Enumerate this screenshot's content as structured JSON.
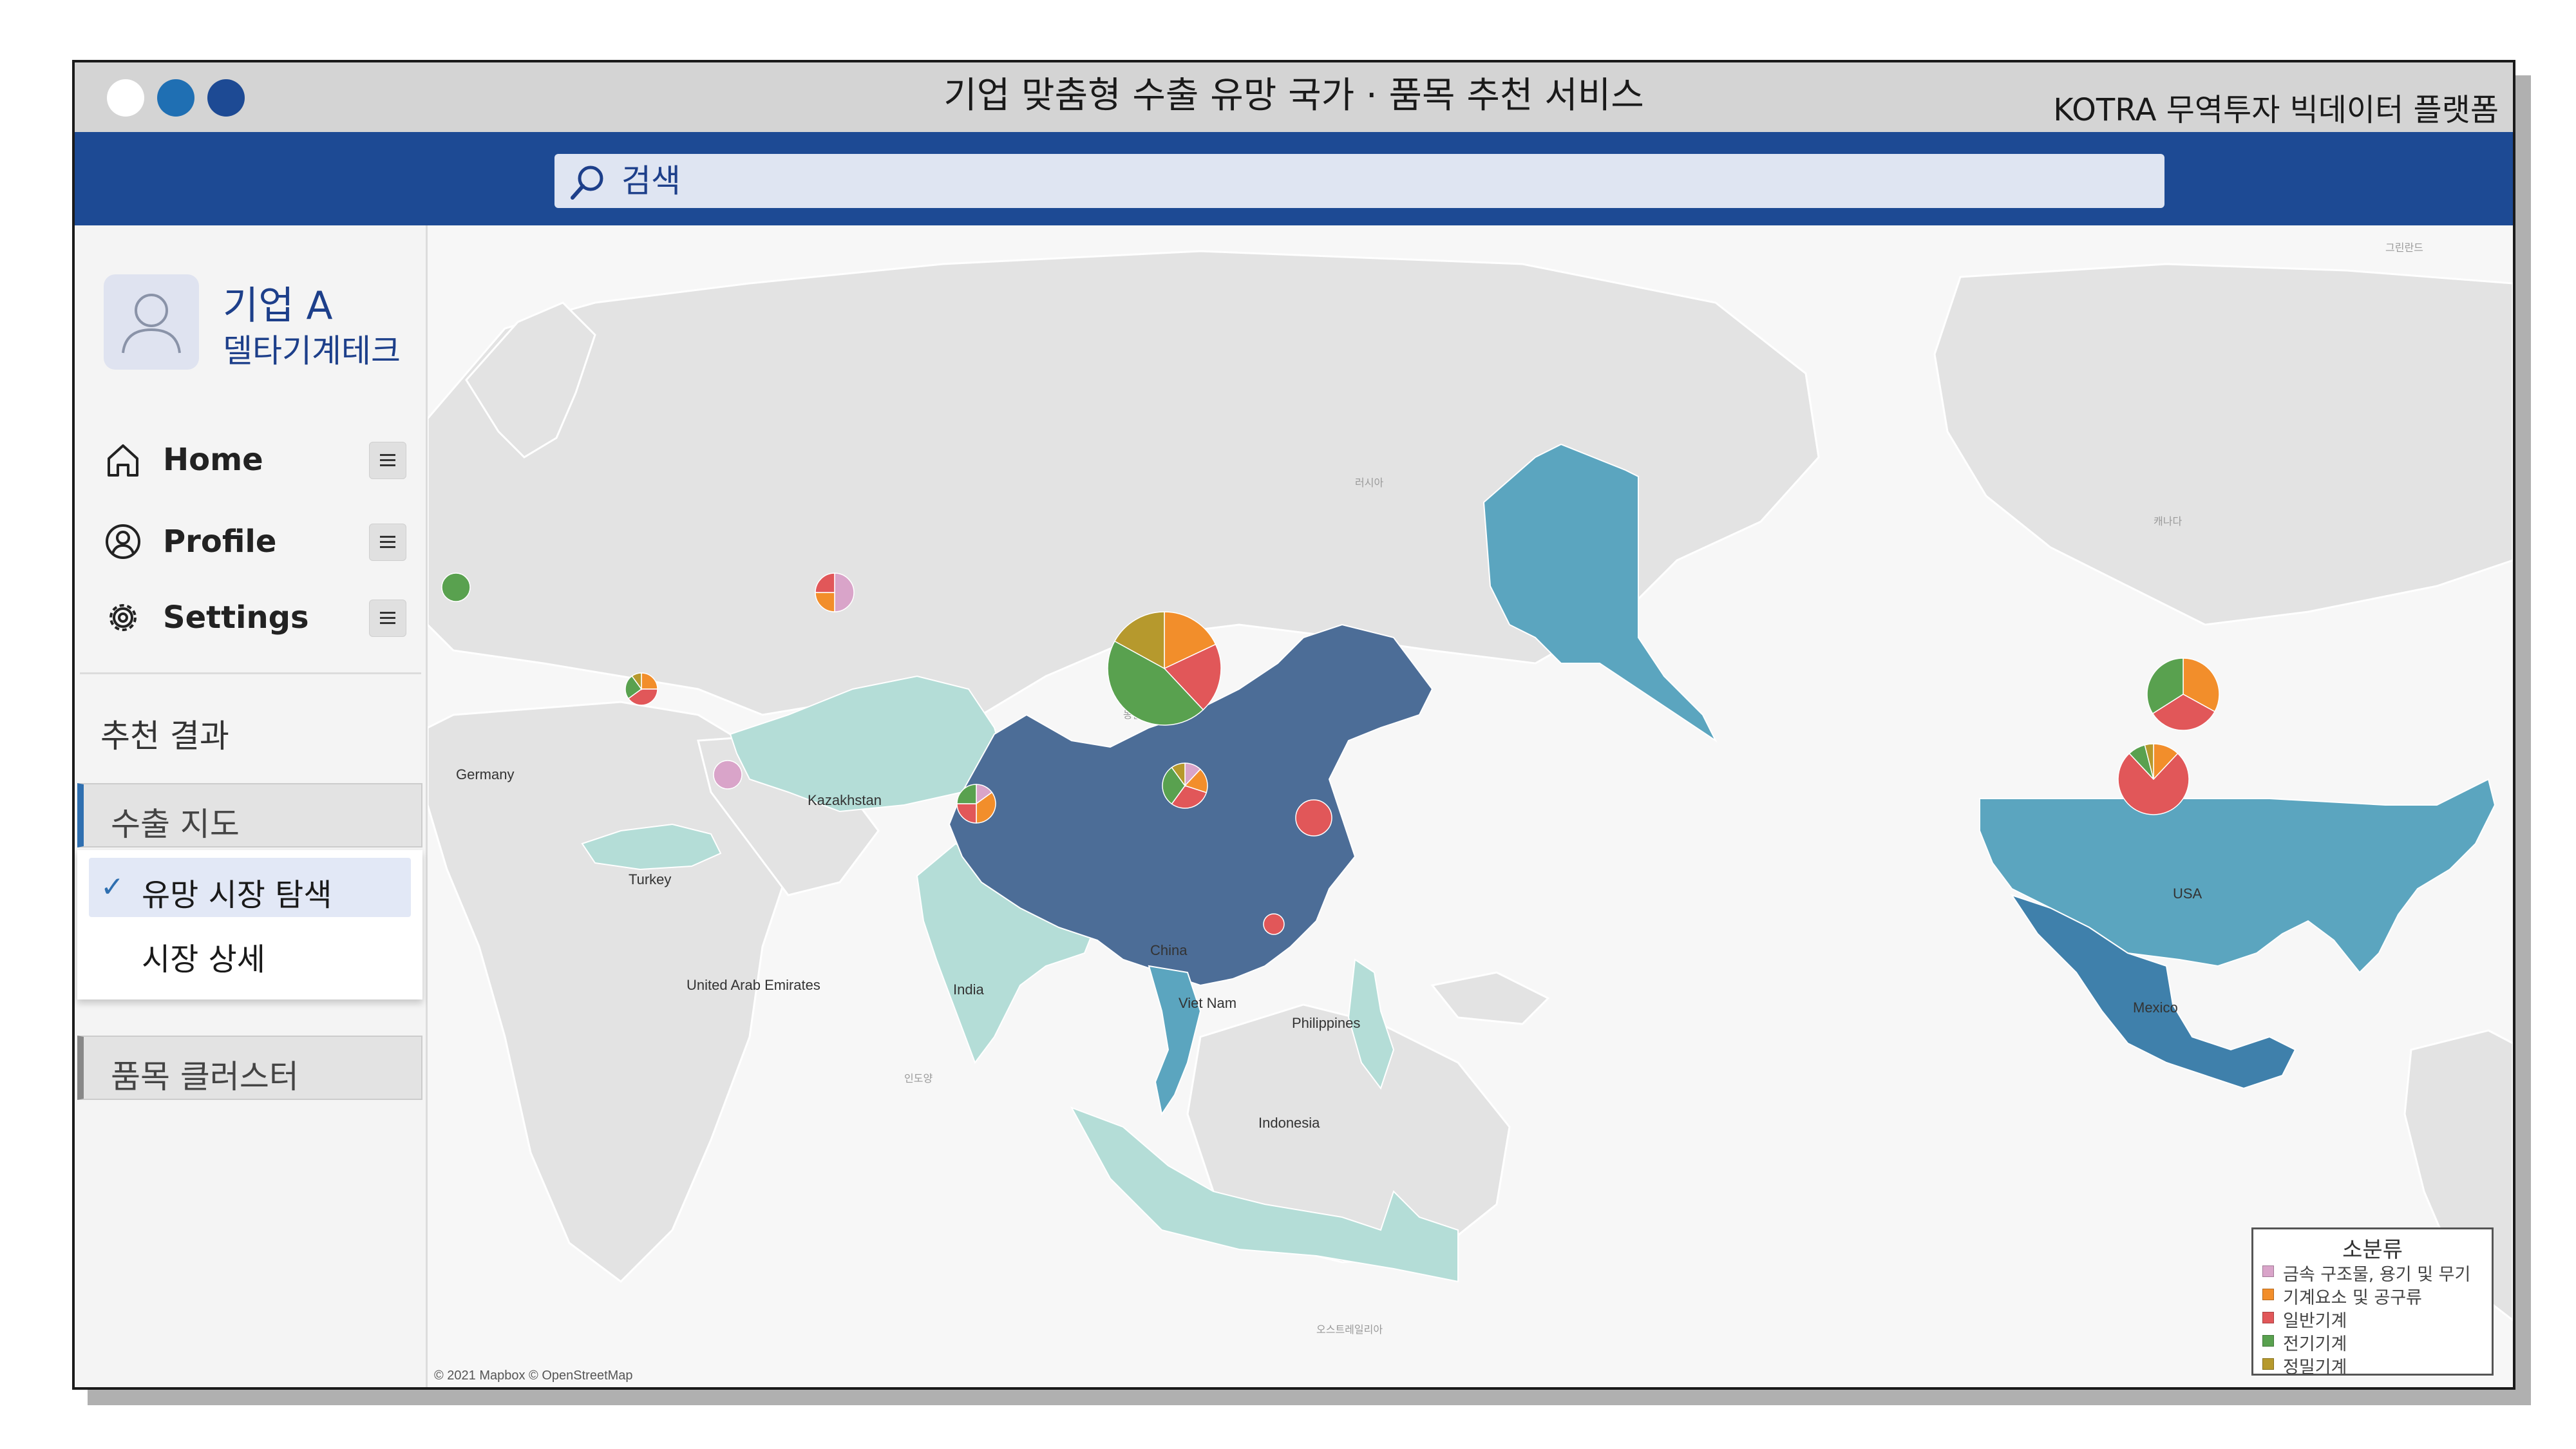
{
  "window": {
    "title": "기업 맞춤형 수출 유망 국가 · 품목 추천 서비스",
    "platform": "KOTRA 무역투자 빅데이터 플랫폼",
    "control_colors": [
      "#ffffff",
      "#1f6fb3",
      "#1d4a94"
    ]
  },
  "search": {
    "placeholder": "검색",
    "value": ""
  },
  "profile": {
    "name": "기업 A",
    "company": "델타기계테크"
  },
  "nav": [
    {
      "label": "Home",
      "icon": "home-icon"
    },
    {
      "label": "Profile",
      "icon": "user-circle-icon"
    },
    {
      "label": "Settings",
      "icon": "gear-icon"
    }
  ],
  "results": {
    "heading": "추천 결과",
    "export_map_tab": "수출 지도",
    "submenu": [
      {
        "label": "유망 시장 탐색",
        "selected": true
      },
      {
        "label": "시장 상세",
        "selected": false
      }
    ],
    "cluster_tab": "품목 클러스터"
  },
  "colors": {
    "title_bar": "#d4d4d4",
    "nav_bar": "#1d4a94",
    "land": "#e3e3e3",
    "China": "#4c6d97",
    "USA": "#5ba5bf",
    "Alaska": "#5ba5bf",
    "Mexico": "#3f80ab",
    "light_highlight": "#b4ddd7"
  },
  "map": {
    "copyright": "© 2021 Mapbox © OpenStreetMap",
    "background_labels": [
      "그린란드",
      "러시아",
      "캐나다",
      "몽골",
      "인도양",
      "오스트레일리아"
    ],
    "countries": [
      {
        "name": "Germany",
        "shares": {
          "전기기계": 1
        }
      },
      {
        "name": "Kazakhstan",
        "shares": {
          "금속 구조물, 용기 및 무기": 0.5,
          "기계요소 및 공구류": 0.25,
          "일반기계": 0.25
        }
      },
      {
        "name": "Turkey",
        "shares": {
          "기계요소 및 공구류": 0.25,
          "일반기계": 0.4,
          "전기기계": 0.25,
          "정밀기계": 0.1
        }
      },
      {
        "name": "United Arab Emirates",
        "shares": {
          "금속 구조물, 용기 및 무기": 1
        }
      },
      {
        "name": "India",
        "shares": {
          "금속 구조물, 용기 및 무기": 0.15,
          "기계요소 및 공구류": 0.35,
          "일반기계": 0.25,
          "전기기계": 0.25
        }
      },
      {
        "name": "China",
        "shares": {
          "기계요소 및 공구류": 0.18,
          "일반기계": 0.2,
          "전기기계": 0.45,
          "정밀기계": 0.17
        }
      },
      {
        "name": "Viet Nam",
        "shares": {
          "금속 구조물, 용기 및 무기": 0.12,
          "기계요소 및 공구류": 0.18,
          "일반기계": 0.3,
          "전기기계": 0.3,
          "정밀기계": 0.1
        }
      },
      {
        "name": "Philippines",
        "shares": {
          "일반기계": 1
        }
      },
      {
        "name": "Indonesia",
        "shares": {
          "일반기계": 1
        }
      },
      {
        "name": "USA",
        "shares": {
          "기계요소 및 공구류": 0.33,
          "일반기계": 0.33,
          "전기기계": 0.34
        }
      },
      {
        "name": "Mexico",
        "shares": {
          "기계요소 및 공구류": 0.12,
          "일반기계": 0.76,
          "전기기계": 0.08,
          "정밀기계": 0.04
        }
      }
    ]
  },
  "legend": {
    "title": "소분류",
    "items": [
      {
        "label": "금속 구조물, 용기 및 무기",
        "color": "#d9a4c9"
      },
      {
        "label": "기계요소 및 공구류",
        "color": "#f28e2b"
      },
      {
        "label": "일반기계",
        "color": "#e15759"
      },
      {
        "label": "전기기계",
        "color": "#59a14f"
      },
      {
        "label": "정밀기계",
        "color": "#b6992d"
      }
    ]
  }
}
